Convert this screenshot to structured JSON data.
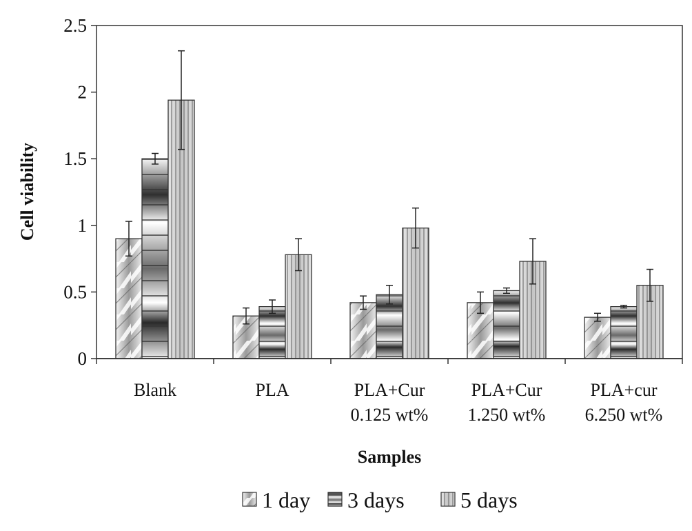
{
  "chart_data": {
    "type": "bar",
    "title": "",
    "xlabel": "Samples",
    "ylabel": "Cell viability",
    "ylim": [
      0,
      2.5
    ],
    "yticks": [
      "0",
      "0.5",
      "1",
      "1.5",
      "2",
      "2.5"
    ],
    "ytick_values": [
      0,
      0.5,
      1,
      1.5,
      2,
      2.5
    ],
    "grid": false,
    "legend_position": "bottom",
    "categories": [
      {
        "line1": "Blank",
        "line2": ""
      },
      {
        "line1": "PLA",
        "line2": ""
      },
      {
        "line1": "PLA+Cur",
        "line2": "0.125 wt%"
      },
      {
        "line1": "PLA+Cur",
        "line2": "1.250 wt%"
      },
      {
        "line1": "PLA+cur",
        "line2": "6.250 wt%"
      }
    ],
    "series": [
      {
        "name": "1 day",
        "pattern": "diagonal",
        "values": [
          0.9,
          0.32,
          0.42,
          0.42,
          0.31
        ],
        "errors": [
          0.13,
          0.06,
          0.05,
          0.08,
          0.03
        ]
      },
      {
        "name": "3 days",
        "pattern": "horizontal",
        "values": [
          1.5,
          0.39,
          0.48,
          0.51,
          0.39
        ],
        "errors": [
          0.04,
          0.05,
          0.07,
          0.02,
          0.01
        ]
      },
      {
        "name": "5 days",
        "pattern": "vertical",
        "values": [
          1.94,
          0.78,
          0.98,
          0.73,
          0.55
        ],
        "errors": [
          0.37,
          0.12,
          0.15,
          0.17,
          0.12
        ]
      }
    ]
  }
}
